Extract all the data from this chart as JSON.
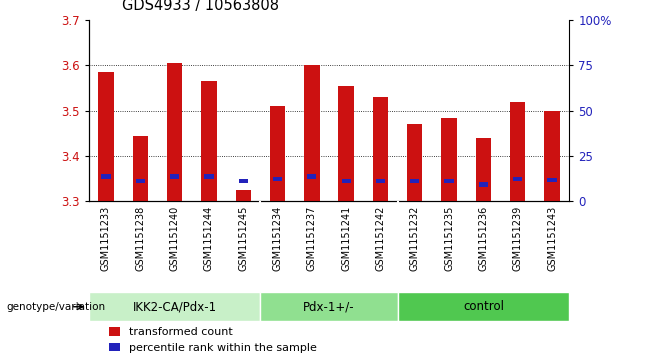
{
  "title": "GDS4933 / 10563808",
  "samples": [
    "GSM1151233",
    "GSM1151238",
    "GSM1151240",
    "GSM1151244",
    "GSM1151245",
    "GSM1151234",
    "GSM1151237",
    "GSM1151241",
    "GSM1151242",
    "GSM1151232",
    "GSM1151235",
    "GSM1151236",
    "GSM1151239",
    "GSM1151243"
  ],
  "red_values": [
    3.585,
    3.445,
    3.605,
    3.565,
    3.325,
    3.51,
    3.6,
    3.555,
    3.53,
    3.47,
    3.485,
    3.44,
    3.52,
    3.5
  ],
  "blue_values": [
    3.355,
    3.345,
    3.355,
    3.355,
    3.345,
    3.35,
    3.355,
    3.345,
    3.345,
    3.345,
    3.345,
    3.337,
    3.35,
    3.347
  ],
  "groups": [
    {
      "label": "IKK2-CA/Pdx-1",
      "start": 0,
      "end": 5,
      "color": "#c8f0c8"
    },
    {
      "label": "Pdx-1+/-",
      "start": 5,
      "end": 9,
      "color": "#90e090"
    },
    {
      "label": "control",
      "start": 9,
      "end": 14,
      "color": "#50c850"
    }
  ],
  "ymin": 3.3,
  "ymax": 3.7,
  "y2min": 0,
  "y2max": 100,
  "yticks": [
    3.3,
    3.4,
    3.5,
    3.6,
    3.7
  ],
  "y2ticks": [
    0,
    25,
    50,
    75,
    100
  ],
  "bar_width": 0.45,
  "bar_color": "#cc1111",
  "blue_color": "#2222bb",
  "xlabel": "genotype/variation",
  "legend_red": "transformed count",
  "legend_blue": "percentile rank within the sample",
  "bg_color": "#cccccc",
  "plot_bg_color": "#ffffff",
  "title_fontsize": 10.5,
  "tick_fontsize": 8.5,
  "sample_fontsize": 7.0
}
